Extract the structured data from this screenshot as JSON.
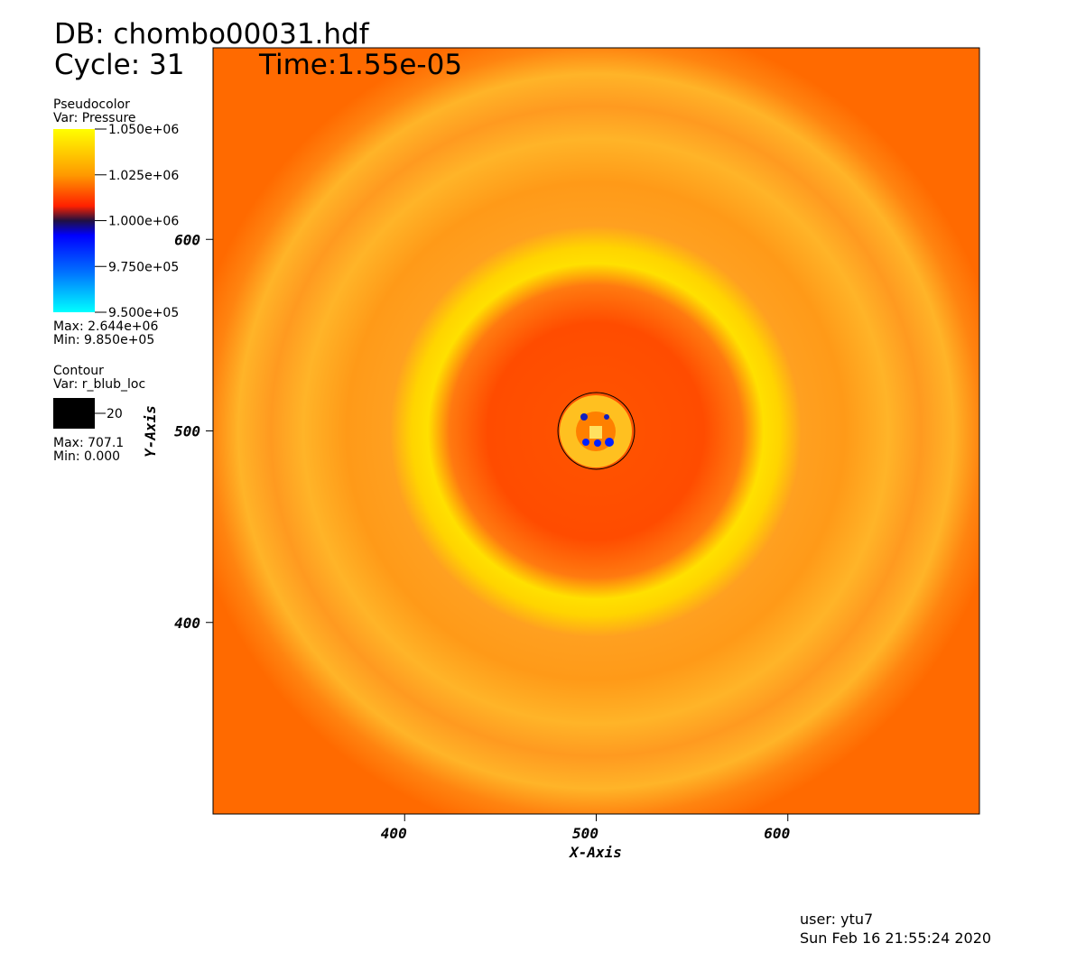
{
  "chart_data": {
    "type": "pseudocolor",
    "db_title": "DB: chombo00031.hdf",
    "cycle_label": "Cycle: 31",
    "time_label": "Time:1.55e-05",
    "xlabel": "X-Axis",
    "ylabel": "Y-Axis",
    "xlim": [
      300,
      700
    ],
    "ylim": [
      300,
      700
    ],
    "xticks": [
      400,
      500,
      600
    ],
    "yticks": [
      400,
      500,
      600
    ],
    "pseudocolor": {
      "plot": "Pseudocolor",
      "var": "Var: Pressure",
      "clim": [
        950000,
        1050000
      ],
      "ticks": [
        {
          "value": 1050000,
          "label": "1.050e+06"
        },
        {
          "value": 1025000,
          "label": "1.025e+06"
        },
        {
          "value": 1000000,
          "label": "1.000e+06"
        },
        {
          "value": 975000,
          "label": "9.750e+05"
        },
        {
          "value": 950000,
          "label": "9.500e+05"
        }
      ],
      "max_label": "Max: 2.644e+06",
      "min_label": "Min: 9.850e+05"
    },
    "contour": {
      "plot": "Contour",
      "var": "Var: r_blub_loc",
      "level": 20,
      "center": [
        500,
        500
      ],
      "color": "#000000",
      "max_label": "Max: 707.1",
      "min_label": "Min: 0.000"
    },
    "user": "user: ytu7",
    "date": "Sun Feb 16 21:55:24 2020"
  }
}
